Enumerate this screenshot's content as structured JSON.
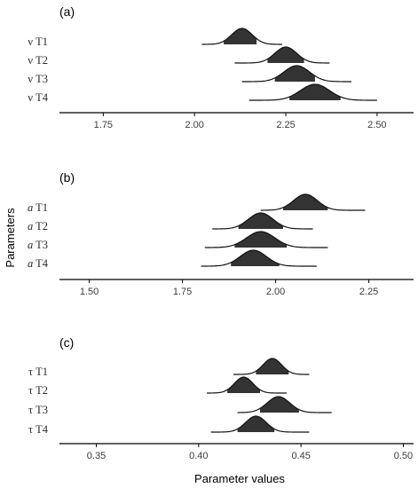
{
  "colors": {
    "ridge_fill": "#333333",
    "ridge_line": "#111111",
    "axis": "#000000",
    "background": "#ffffff"
  },
  "axis_titles": {
    "y": "Parameters",
    "x": "Parameter values"
  },
  "chart_data": [
    {
      "type": "ridgeline",
      "panel_label": "(a)",
      "xlim": [
        1.63,
        2.6
      ],
      "xticks": [
        1.75,
        2.0,
        2.25,
        2.5
      ],
      "tick_labels": [
        "1.75",
        "2.00",
        "2.25",
        "2.50"
      ],
      "series": [
        {
          "symbol": "ν",
          "italic": false,
          "suffix": " T1",
          "mean": 2.13,
          "sd": 0.028,
          "range": [
            2.02,
            2.24
          ],
          "hdi": [
            2.08,
            2.17
          ]
        },
        {
          "symbol": "ν",
          "italic": false,
          "suffix": " T2",
          "mean": 2.25,
          "sd": 0.03,
          "range": [
            2.11,
            2.37
          ],
          "hdi": [
            2.2,
            2.3
          ]
        },
        {
          "symbol": "ν",
          "italic": false,
          "suffix": " T3",
          "mean": 2.28,
          "sd": 0.035,
          "range": [
            2.13,
            2.43
          ],
          "hdi": [
            2.22,
            2.33
          ]
        },
        {
          "symbol": "ν",
          "italic": false,
          "suffix": " T4",
          "mean": 2.33,
          "sd": 0.04,
          "range": [
            2.15,
            2.5
          ],
          "hdi": [
            2.26,
            2.4
          ]
        }
      ]
    },
    {
      "type": "ridgeline",
      "panel_label": "(b)",
      "xlim": [
        1.42,
        2.37
      ],
      "xticks": [
        1.5,
        1.75,
        2.0,
        2.25
      ],
      "tick_labels": [
        "1.50",
        "1.75",
        "2.00",
        "2.25"
      ],
      "series": [
        {
          "symbol": "a",
          "italic": true,
          "suffix": " T1",
          "mean": 2.08,
          "sd": 0.032,
          "range": [
            1.96,
            2.24
          ],
          "hdi": [
            2.02,
            2.14
          ]
        },
        {
          "symbol": "a",
          "italic": true,
          "suffix": " T2",
          "mean": 1.96,
          "sd": 0.033,
          "range": [
            1.83,
            2.1
          ],
          "hdi": [
            1.9,
            2.02
          ]
        },
        {
          "symbol": "a",
          "italic": true,
          "suffix": " T3",
          "mean": 1.96,
          "sd": 0.038,
          "range": [
            1.81,
            2.14
          ],
          "hdi": [
            1.89,
            2.03
          ]
        },
        {
          "symbol": "a",
          "italic": true,
          "suffix": " T4",
          "mean": 1.94,
          "sd": 0.035,
          "range": [
            1.8,
            2.11
          ],
          "hdi": [
            1.88,
            2.01
          ]
        }
      ]
    },
    {
      "type": "ridgeline",
      "panel_label": "(c)",
      "xlim": [
        0.332,
        0.505
      ],
      "xticks": [
        0.35,
        0.4,
        0.45,
        0.5
      ],
      "tick_labels": [
        "0.35",
        "0.40",
        "0.45",
        "0.50"
      ],
      "series": [
        {
          "symbol": "τ",
          "italic": false,
          "suffix": " T1",
          "mean": 0.436,
          "sd": 0.0045,
          "range": [
            0.417,
            0.454
          ],
          "hdi": [
            0.428,
            0.444
          ]
        },
        {
          "symbol": "τ",
          "italic": false,
          "suffix": " T2",
          "mean": 0.422,
          "sd": 0.0045,
          "range": [
            0.404,
            0.443
          ],
          "hdi": [
            0.414,
            0.43
          ]
        },
        {
          "symbol": "τ",
          "italic": false,
          "suffix": " T3",
          "mean": 0.439,
          "sd": 0.0055,
          "range": [
            0.419,
            0.465
          ],
          "hdi": [
            0.43,
            0.449
          ]
        },
        {
          "symbol": "τ",
          "italic": false,
          "suffix": " T4",
          "mean": 0.428,
          "sd": 0.005,
          "range": [
            0.406,
            0.454
          ],
          "hdi": [
            0.419,
            0.437
          ]
        }
      ]
    }
  ]
}
